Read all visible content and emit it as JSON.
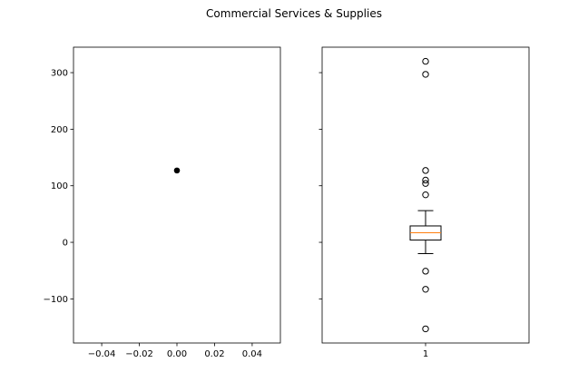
{
  "chart_data": {
    "title": "Commercial Services & Supplies",
    "ylim": [
      -178,
      345
    ],
    "y_ticks": [
      -100,
      0,
      100,
      200,
      300
    ],
    "y_tick_labels": [
      "−100",
      "0",
      "100",
      "200",
      "300"
    ],
    "panels": [
      {
        "type": "scatter",
        "xlim": [
          -0.055,
          0.055
        ],
        "x_ticks": [
          -0.04,
          -0.02,
          0.0,
          0.02,
          0.04
        ],
        "x_tick_labels": [
          "−0.04",
          "−0.02",
          "0.00",
          "0.02",
          "0.04"
        ],
        "points": [
          {
            "x": 0.0,
            "y": 127
          }
        ],
        "marker_color": "#000000"
      },
      {
        "type": "box",
        "x_tick_labels": [
          "1"
        ],
        "box": {
          "median": 17,
          "q1": 4,
          "q3": 29,
          "whisker_low": -20,
          "whisker_high": 56,
          "fliers": [
            320,
            297,
            127,
            110,
            104,
            84,
            -51,
            -83,
            -153
          ]
        },
        "median_color": "#ff7f0e",
        "ylim_shared": true
      }
    ]
  }
}
